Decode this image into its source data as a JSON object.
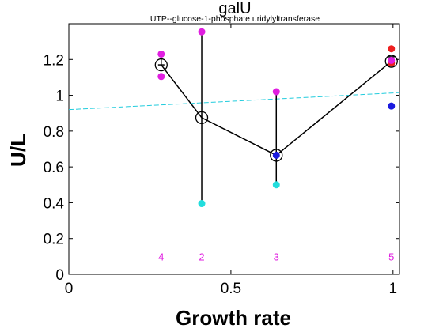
{
  "chart_data": {
    "type": "scatter",
    "title": "galU",
    "subtitle": "UTP--glucose-1-phosphate uridylyltransferase",
    "xlabel": "Growth rate",
    "ylabel": "U/L",
    "xlim": [
      0,
      1.02
    ],
    "ylim": [
      0,
      1.4
    ],
    "xticks": [
      0,
      0.5,
      1
    ],
    "xtick_labels": [
      "0",
      "0.5",
      "1"
    ],
    "yticks": [
      0,
      0.2,
      0.4,
      0.6,
      0.8,
      1.0,
      1.2
    ],
    "ytick_labels": [
      "0",
      "0.2",
      "0.4",
      "0.6",
      "0.8",
      "1",
      "1.2"
    ],
    "grid": false,
    "trend_line": {
      "color": "#22ccdd",
      "style": "dashed",
      "x": [
        0,
        1.02
      ],
      "y": [
        0.92,
        1.015
      ]
    },
    "mean_series": {
      "color": "#000000",
      "points": [
        {
          "x": 0.285,
          "y": 1.17,
          "err_low": 1.17,
          "err_high": 1.23
        },
        {
          "x": 0.41,
          "y": 0.875,
          "err_low": 0.395,
          "err_high": 1.355
        },
        {
          "x": 0.64,
          "y": 0.665,
          "err_low": 0.5,
          "err_high": 1.02
        },
        {
          "x": 0.995,
          "y": 1.19,
          "err_low": 1.17,
          "err_high": 1.215
        }
      ]
    },
    "samples": [
      {
        "x": 0.285,
        "y": 1.23,
        "color": "#e01ee0"
      },
      {
        "x": 0.285,
        "y": 1.105,
        "color": "#e01ee0"
      },
      {
        "x": 0.41,
        "y": 1.355,
        "color": "#e01ee0"
      },
      {
        "x": 0.41,
        "y": 0.395,
        "color": "#22dddd"
      },
      {
        "x": 0.64,
        "y": 1.02,
        "color": "#e01ee0"
      },
      {
        "x": 0.64,
        "y": 0.665,
        "color": "#1a1adf"
      },
      {
        "x": 0.64,
        "y": 0.5,
        "color": "#22dddd"
      },
      {
        "x": 0.995,
        "y": 1.26,
        "color": "#ee2020"
      },
      {
        "x": 0.995,
        "y": 1.18,
        "color": "#ee2020"
      },
      {
        "x": 0.995,
        "y": 1.195,
        "color": "#e01ee0"
      },
      {
        "x": 0.995,
        "y": 0.94,
        "color": "#1a1adf"
      }
    ],
    "counts": [
      {
        "x": 0.285,
        "label": "4"
      },
      {
        "x": 0.41,
        "label": "2"
      },
      {
        "x": 0.64,
        "label": "3"
      },
      {
        "x": 0.995,
        "label": "5"
      }
    ],
    "count_y": 0.1
  }
}
